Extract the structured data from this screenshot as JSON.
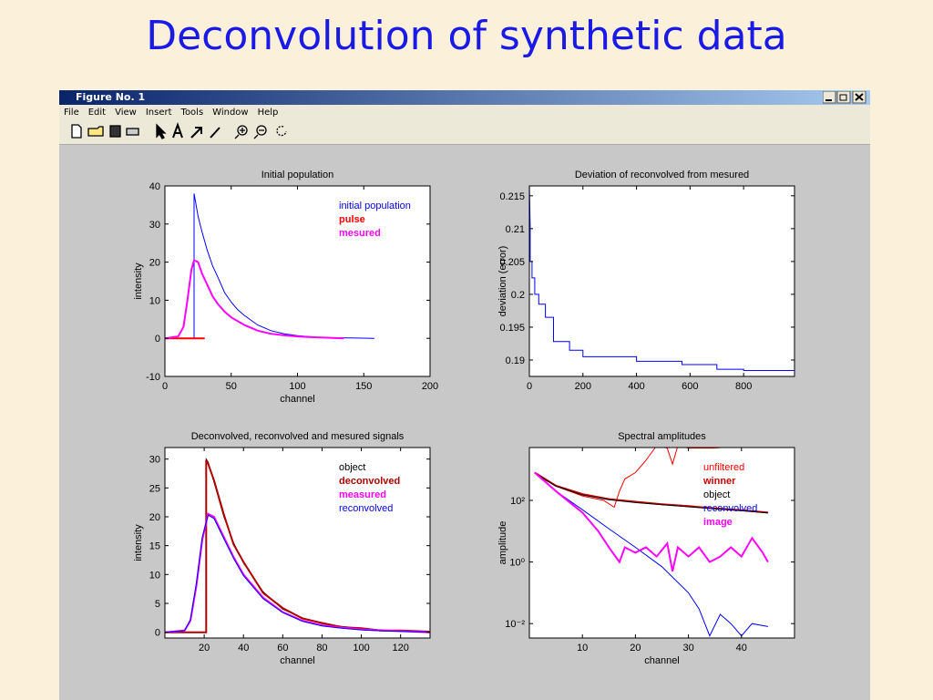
{
  "slide_title": "Deconvolution of synthetic data",
  "window": {
    "title": "Figure No. 1",
    "menu": [
      "File",
      "Edit",
      "View",
      "Insert",
      "Tools",
      "Window",
      "Help"
    ]
  },
  "chart_data": [
    {
      "type": "line",
      "title": "Initial population",
      "xlabel": "channel",
      "ylabel": "intensity",
      "xlim": [
        0,
        200
      ],
      "xticks": [
        0,
        50,
        100,
        150,
        200
      ],
      "ylim": [
        -10,
        40
      ],
      "yticks": [
        -10,
        0,
        10,
        20,
        30,
        40
      ],
      "series": [
        {
          "name": "initial population",
          "color": "#0000ff",
          "linewidth": 1,
          "x": [
            22,
            22,
            23,
            25,
            28,
            32,
            36,
            40,
            45,
            50,
            55,
            60,
            70,
            80,
            90,
            100,
            110,
            120,
            140,
            158
          ],
          "values": [
            0,
            38,
            36,
            32,
            28,
            23,
            19,
            16,
            12,
            9.5,
            7.5,
            6,
            3.5,
            2,
            1.2,
            0.7,
            0.4,
            0.2,
            0.1,
            0
          ]
        },
        {
          "name": "pulse",
          "color": "#ff0000",
          "linewidth": 2,
          "x": [
            0,
            30
          ],
          "values": [
            0,
            0
          ]
        },
        {
          "name": "mesured",
          "color": "#ff00ff",
          "linewidth": 2,
          "x": [
            0,
            10,
            14,
            17,
            20,
            22,
            25,
            28,
            32,
            36,
            40,
            45,
            50,
            60,
            70,
            80,
            90,
            100,
            110,
            120,
            135
          ],
          "values": [
            0,
            0.5,
            3,
            10,
            18,
            20.5,
            20,
            17,
            14,
            11,
            9,
            7,
            5.5,
            3.5,
            2,
            1.2,
            0.8,
            0.5,
            0.3,
            0.2,
            0
          ]
        }
      ]
    },
    {
      "type": "line",
      "title": "Deviation of reconvolved from mesured",
      "ylabel": "deviation (error)",
      "xlim": [
        0,
        990
      ],
      "xticks": [
        0,
        200,
        400,
        600,
        800
      ],
      "ylim": [
        0.1875,
        0.2165
      ],
      "yticks": [
        0.19,
        0.195,
        0.2,
        0.205,
        0.21,
        0.215
      ],
      "series": [
        {
          "name": null,
          "color": "#0000ff",
          "linewidth": 1,
          "x": [
            0,
            3,
            3,
            10,
            10,
            20,
            20,
            35,
            35,
            60,
            60,
            90,
            90,
            150,
            150,
            200,
            200,
            400,
            400,
            570,
            570,
            700,
            700,
            800,
            800,
            990
          ],
          "values": [
            0.217,
            0.21,
            0.205,
            0.205,
            0.2025,
            0.2025,
            0.2,
            0.2,
            0.1985,
            0.1985,
            0.1965,
            0.1965,
            0.1928,
            0.1928,
            0.1915,
            0.1915,
            0.1905,
            0.1905,
            0.1898,
            0.1898,
            0.1893,
            0.1893,
            0.1886,
            0.1886,
            0.1884,
            0.1884
          ]
        }
      ]
    },
    {
      "type": "line",
      "title": "Deconvolved, reconvolved and mesured signals",
      "xlabel": "channel",
      "ylabel": "intensity",
      "xlim": [
        0,
        135
      ],
      "xticks": [
        20,
        40,
        60,
        80,
        100,
        120
      ],
      "ylim": [
        -1,
        32
      ],
      "yticks": [
        0,
        5,
        10,
        15,
        20,
        25,
        30
      ],
      "series": [
        {
          "name": "object",
          "color": "#000000",
          "linewidth": 1,
          "x": [
            0,
            20,
            21,
            21,
            22,
            25,
            30,
            35,
            40,
            50,
            60,
            70,
            80,
            90,
            100,
            110,
            120,
            135
          ],
          "values": [
            0,
            0,
            0,
            30,
            29.5,
            26,
            20,
            15.5,
            12,
            7,
            4,
            2.5,
            1.5,
            1,
            0.6,
            0.4,
            0.2,
            0.1
          ]
        },
        {
          "name": "deconvolved",
          "color": "#b00000",
          "linewidth": 2,
          "x": [
            0,
            20,
            21,
            21,
            22,
            25,
            30,
            35,
            40,
            50,
            60,
            70,
            80,
            90,
            100,
            110,
            120,
            135
          ],
          "values": [
            0,
            0,
            0,
            29.8,
            29.2,
            26.3,
            20.4,
            15.2,
            12.2,
            6.8,
            4.2,
            2.4,
            1.6,
            0.9,
            0.7,
            0.3,
            0.3,
            0.1
          ]
        },
        {
          "name": "measured",
          "color": "#ff00ff",
          "linewidth": 2,
          "x": [
            0,
            10,
            13,
            16,
            19,
            22,
            25,
            30,
            35,
            40,
            50,
            60,
            70,
            80,
            90,
            100,
            110,
            120,
            135
          ],
          "values": [
            0,
            0.3,
            2,
            8,
            16,
            20.5,
            20,
            16.5,
            13,
            10,
            6,
            3.5,
            2,
            1.2,
            0.8,
            0.5,
            0.3,
            0.2,
            0
          ]
        },
        {
          "name": "reconvolved",
          "color": "#0000ff",
          "linewidth": 1,
          "x": [
            0,
            10,
            13,
            16,
            19,
            22,
            25,
            30,
            35,
            40,
            50,
            60,
            70,
            80,
            90,
            100,
            110,
            120,
            135
          ],
          "values": [
            0,
            0.3,
            2.2,
            8.5,
            16.5,
            20.3,
            19.7,
            16.2,
            12.8,
            9.8,
            5.8,
            3.4,
            1.9,
            1.1,
            0.7,
            0.4,
            0.25,
            0.15,
            0
          ]
        }
      ]
    },
    {
      "type": "line",
      "title": "Spectral amplitudes",
      "xlabel": "channel",
      "ylabel": "amplitude",
      "yscale": "log",
      "xlim": [
        0,
        50
      ],
      "xticks": [
        10,
        20,
        30,
        40
      ],
      "ylim": [
        0.0034,
        5200
      ],
      "yticks": [
        {
          "value": 0.01,
          "label": "10⁻²"
        },
        {
          "value": 1,
          "label": "10⁰"
        },
        {
          "value": 100,
          "label": "10²"
        }
      ],
      "series": [
        {
          "name": "unfiltered",
          "color": "#ff0000",
          "linewidth": 1,
          "x": [
            1,
            3,
            6,
            10,
            14,
            16,
            17,
            18,
            20,
            22,
            24,
            26,
            27,
            28,
            30,
            35,
            40,
            45
          ],
          "values": [
            800,
            450,
            250,
            140,
            100,
            60,
            200,
            500,
            800,
            2000,
            6000,
            5000,
            1500,
            6000,
            5000,
            5000,
            6000,
            6000
          ]
        },
        {
          "name": "winner",
          "color": "#cc0000",
          "linewidth": 2,
          "x": [
            1,
            5,
            10,
            15,
            20,
            25,
            30,
            35,
            40,
            45
          ],
          "values": [
            800,
            300,
            160,
            110,
            90,
            75,
            65,
            55,
            48,
            40
          ]
        },
        {
          "name": "object",
          "color": "#000000",
          "linewidth": 1,
          "x": [
            1,
            5,
            10,
            15,
            20,
            25,
            30,
            35,
            40,
            45
          ],
          "values": [
            780,
            290,
            150,
            105,
            85,
            72,
            62,
            53,
            46,
            39
          ]
        },
        {
          "name": "reconvolved",
          "color": "#0000ff",
          "linewidth": 1,
          "x": [
            1,
            5,
            10,
            15,
            20,
            25,
            30,
            32,
            34,
            36,
            38,
            40,
            42,
            45
          ],
          "values": [
            800,
            200,
            50,
            12,
            3,
            0.7,
            0.1,
            0.03,
            0.004,
            0.02,
            0.01,
            0.004,
            0.01,
            0.008
          ]
        },
        {
          "name": "image",
          "color": "#ff00ff",
          "linewidth": 2,
          "x": [
            1,
            5,
            10,
            13,
            15,
            17,
            18,
            20,
            22,
            24,
            26,
            27,
            28,
            30,
            32,
            34,
            36,
            38,
            40,
            42,
            44,
            45
          ],
          "values": [
            800,
            200,
            40,
            10,
            3,
            1,
            3,
            2,
            3,
            1.5,
            4,
            0.5,
            3,
            1.5,
            3,
            1,
            1.5,
            3,
            1.5,
            6,
            2,
            1
          ]
        }
      ]
    }
  ]
}
